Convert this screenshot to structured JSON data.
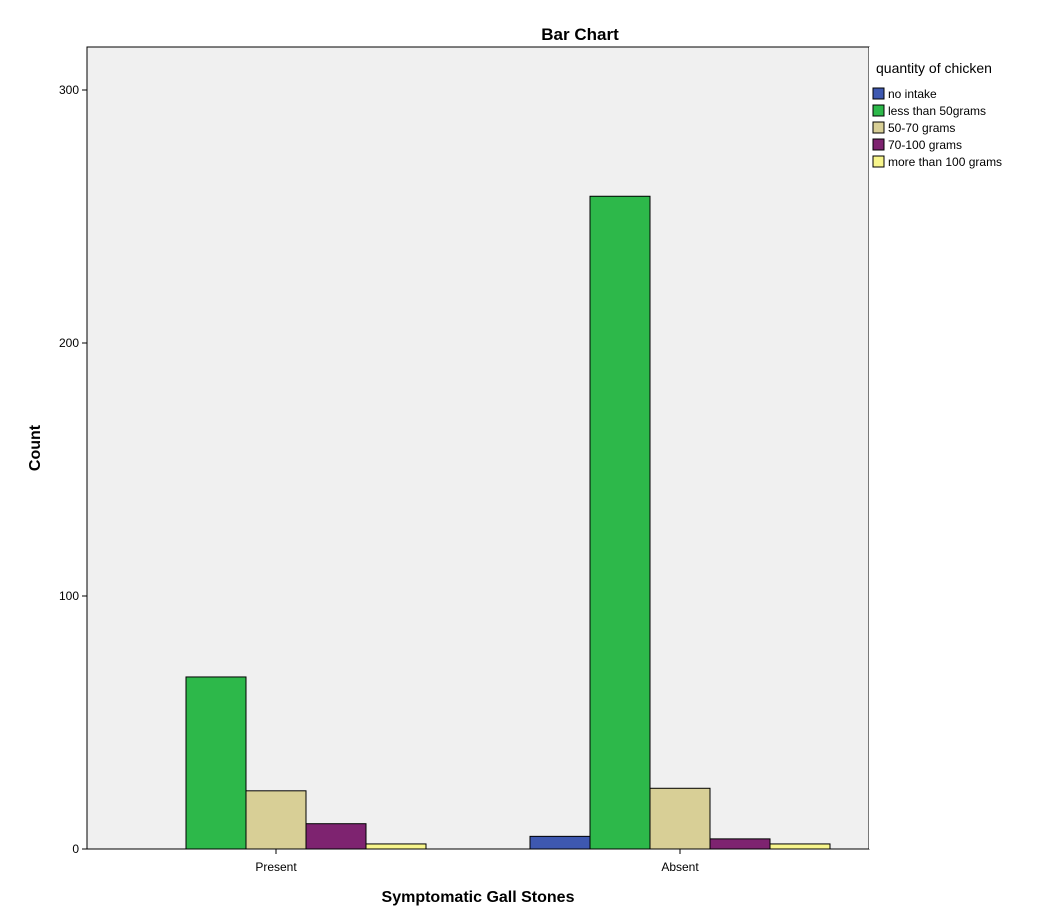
{
  "chart_data": {
    "type": "bar",
    "title": "Bar Chart",
    "xlabel": "Symptomatic Gall Stones",
    "ylabel": "Count",
    "categories": [
      "Present",
      "Absent"
    ],
    "ylim": [
      0,
      320
    ],
    "yticks": [
      0,
      100,
      200,
      300
    ],
    "grid": false,
    "legend": {
      "title": "quantity of chicken",
      "placement": "right"
    },
    "series": [
      {
        "name": "no intake",
        "color": "#3e58b0",
        "values": [
          0,
          5
        ]
      },
      {
        "name": "less than 50grams",
        "color": "#2db84a",
        "values": [
          68,
          258
        ]
      },
      {
        "name": "50-70 grams",
        "color": "#d8cf96",
        "values": [
          23,
          24
        ]
      },
      {
        "name": "70-100 grams",
        "color": "#7e2370",
        "values": [
          10,
          4
        ]
      },
      {
        "name": "more than 100 grams",
        "color": "#f7f58c",
        "values": [
          2,
          2
        ]
      }
    ],
    "plot_background": "#f0f0f0"
  }
}
